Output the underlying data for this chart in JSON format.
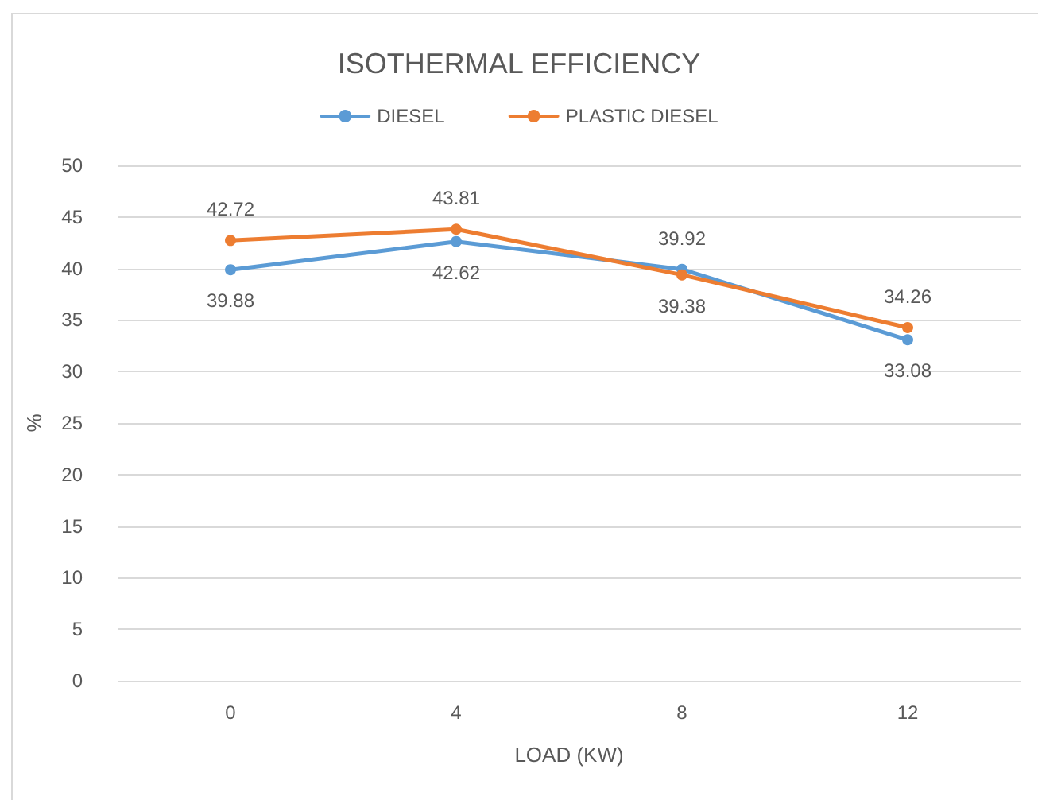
{
  "chart_data": {
    "type": "line",
    "title": "ISOTHERMAL EFFICIENCY",
    "xlabel": "LOAD (KW)",
    "ylabel": "%",
    "categories": [
      "0",
      "4",
      "8",
      "12"
    ],
    "series": [
      {
        "name": "DIESEL",
        "color": "#5b9bd5",
        "values": [
          39.88,
          42.62,
          39.92,
          33.08
        ]
      },
      {
        "name": "PLASTIC DIESEL",
        "color": "#ed7d31",
        "values": [
          42.72,
          43.81,
          39.38,
          34.26
        ]
      }
    ],
    "ylim": [
      0,
      50
    ],
    "yticks": [
      0,
      5,
      10,
      15,
      20,
      25,
      30,
      35,
      40,
      45,
      50
    ],
    "grid": "y",
    "legend": "top",
    "marker": "circle",
    "line_style": "solid",
    "data_labels": true
  }
}
